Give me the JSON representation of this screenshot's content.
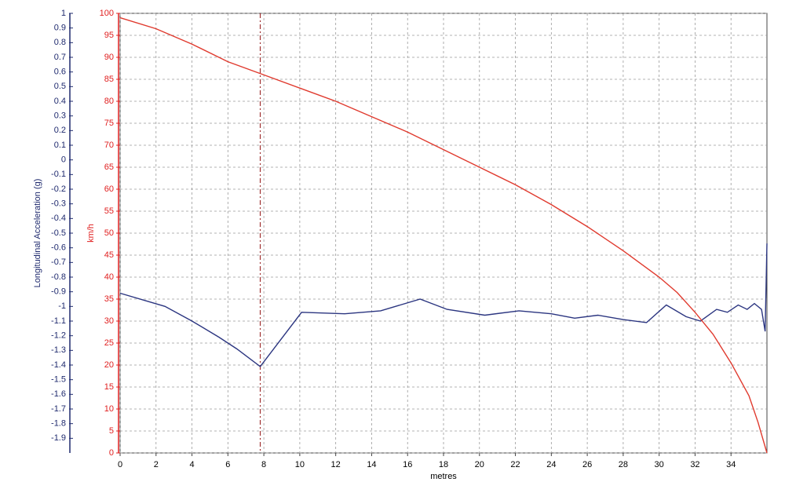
{
  "chart_data": {
    "type": "line",
    "x_label": "metres",
    "y_label": "Longitudinal Acceleration (g)",
    "y2_label": "km/h",
    "xlim": [
      0,
      36
    ],
    "xticks": [
      0,
      2,
      4,
      6,
      8,
      10,
      12,
      14,
      16,
      18,
      20,
      22,
      24,
      26,
      28,
      30,
      32,
      34
    ],
    "ylim": [
      -2,
      1
    ],
    "yticks": [
      -1.9,
      -1.8,
      -1.7,
      -1.6,
      -1.5,
      -1.4,
      -1.3,
      -1.2,
      -1.1,
      -1,
      -0.9,
      -0.8,
      -0.7,
      -0.6,
      -0.5,
      -0.4,
      -0.3,
      -0.2,
      -0.1,
      0,
      0.1,
      0.2,
      0.3,
      0.4,
      0.5,
      0.6,
      0.7,
      0.8,
      0.9,
      1
    ],
    "y2lim": [
      0,
      100
    ],
    "y2ticks": [
      0,
      5,
      10,
      15,
      20,
      25,
      30,
      35,
      40,
      45,
      50,
      55,
      60,
      65,
      70,
      75,
      80,
      85,
      90,
      95,
      100
    ],
    "y_color": "#1f2a6e",
    "y2_color": "#e02020",
    "grid": true,
    "cursor_x": 7.8,
    "cursor_color": "#a03030",
    "series": [
      {
        "color": "#2b3580",
        "axis": "y",
        "x": [
          0,
          2.5,
          4,
          5.5,
          6.5,
          7.8,
          10.1,
          12.5,
          14.5,
          16.7,
          18.2,
          20.3,
          22.2,
          24,
          25.3,
          26.6,
          28,
          29.3,
          30.4,
          31.5,
          32.3,
          33.2,
          33.8,
          34.4,
          34.9,
          35.3,
          35.7,
          35.9,
          36
        ],
        "values": [
          -0.91,
          -1.0,
          -1.1,
          -1.21,
          -1.29,
          -1.41,
          -1.04,
          -1.05,
          -1.03,
          -0.95,
          -1.02,
          -1.06,
          -1.03,
          -1.05,
          -1.08,
          -1.06,
          -1.09,
          -1.11,
          -0.99,
          -1.07,
          -1.1,
          -1.02,
          -1.04,
          -0.99,
          -1.02,
          -0.98,
          -1.02,
          -1.17,
          -0.57
        ]
      },
      {
        "color": "#e03a2e",
        "axis": "y2",
        "x": [
          0,
          2,
          4,
          6,
          8,
          10,
          12,
          14,
          16,
          18,
          20,
          22,
          24,
          26,
          28,
          30,
          31,
          32,
          33,
          34,
          35,
          35.5,
          36
        ],
        "values": [
          99,
          96.5,
          93,
          89,
          86,
          83,
          80,
          76.5,
          73,
          69,
          65,
          61,
          56.5,
          51.5,
          46,
          40,
          36.5,
          32,
          27,
          20.5,
          13,
          7,
          0
        ]
      }
    ]
  }
}
